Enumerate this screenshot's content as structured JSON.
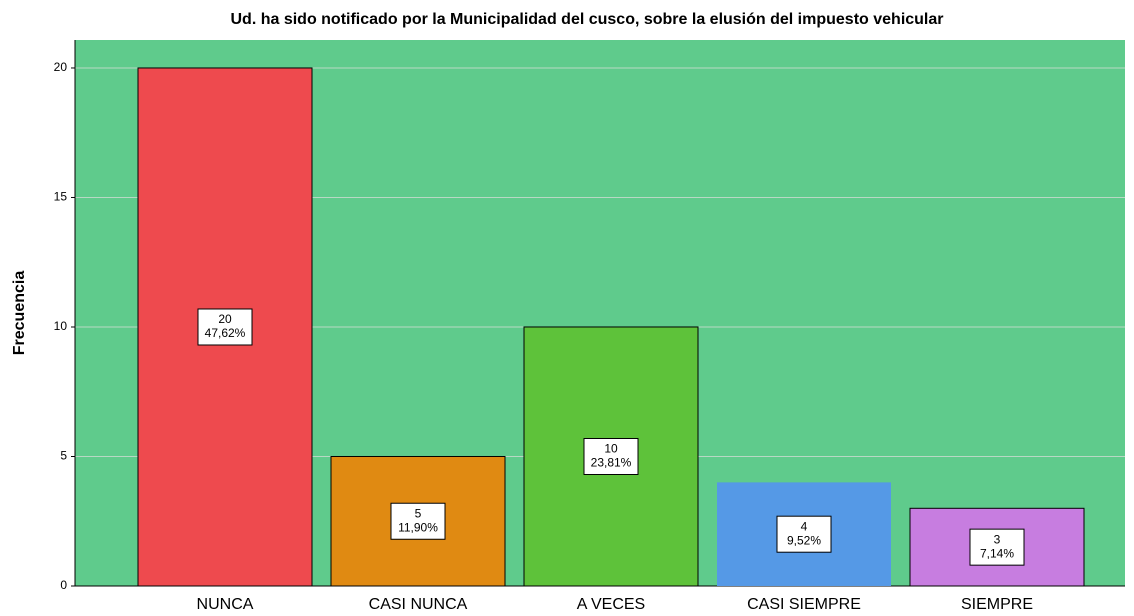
{
  "chart_data": {
    "type": "bar",
    "title": "Ud. ha sido notificado por la Municipalidad del cusco, sobre la elusión del impuesto vehicular",
    "y_label": "Frecuencia",
    "categories": [
      "NUNCA",
      "CASI NUNCA",
      "A VECES",
      "CASI SIEMPRE",
      "SIEMPRE"
    ],
    "values": [
      20,
      5,
      10,
      4,
      3
    ],
    "percent_labels": [
      "47,62%",
      "11,90%",
      "23,81%",
      "9,52%",
      "7,14%"
    ],
    "colors": [
      "#ee4a4e",
      "#e08a12",
      "#5ec23a",
      "#5599e6",
      "#c77de0"
    ],
    "ylim": [
      0,
      21.08
    ],
    "yticks": [
      0,
      5,
      10,
      15,
      20
    ],
    "grid": true
  }
}
